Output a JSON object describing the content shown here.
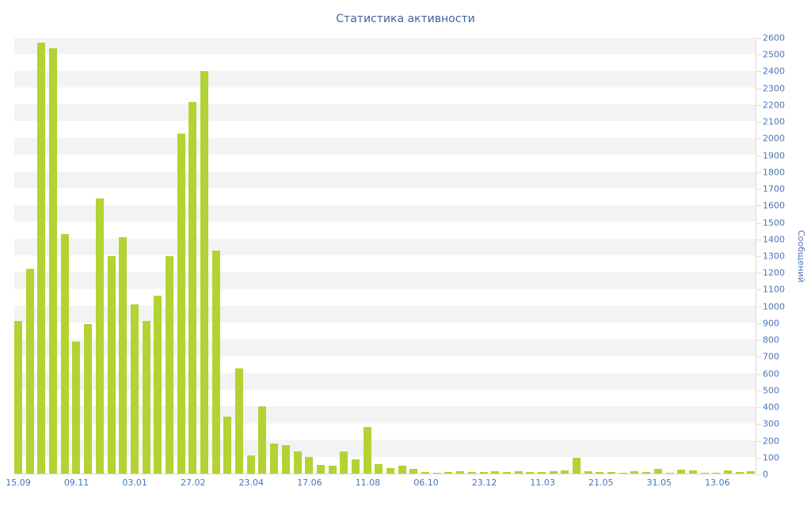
{
  "chart": {
    "title": "Статистика активности",
    "y_axis_title": "Сообщений",
    "colors": {
      "bar": "#b2d333",
      "axis_text": "#4a74b8",
      "title_text": "#44639e",
      "band": "#f3f3f3",
      "axis_line": "#d9d9d9"
    }
  },
  "chart_data": {
    "type": "bar",
    "title": "Статистика активности",
    "xlabel": "",
    "ylabel": "Сообщений",
    "ylim": [
      0,
      2600
    ],
    "grid_bands": true,
    "legend": "none",
    "y_ticks": [
      0,
      100,
      200,
      300,
      400,
      500,
      600,
      700,
      800,
      900,
      1000,
      1100,
      1200,
      1300,
      1400,
      1500,
      1600,
      1700,
      1800,
      1900,
      2000,
      2100,
      2200,
      2300,
      2400,
      2500,
      2600
    ],
    "x_tick_labels": [
      "15.09",
      "09.11",
      "03.01",
      "27.02",
      "23.04",
      "17.06",
      "11.08",
      "06.10",
      "23.12",
      "11.03",
      "21.05",
      "31.05",
      "13.06"
    ],
    "x_tick_every": 5,
    "values": [
      910,
      1220,
      2570,
      2540,
      1430,
      790,
      890,
      1640,
      1300,
      1410,
      1010,
      910,
      1060,
      1300,
      2030,
      2220,
      2400,
      1330,
      340,
      630,
      110,
      400,
      180,
      170,
      130,
      100,
      50,
      45,
      130,
      85,
      280,
      55,
      35,
      45,
      30,
      10,
      5,
      10,
      15,
      10,
      10,
      15,
      10,
      15,
      10,
      10,
      15,
      20,
      95,
      15,
      10,
      10,
      5,
      15,
      10,
      30,
      5,
      25,
      20,
      5,
      5,
      20,
      10,
      15
    ]
  }
}
